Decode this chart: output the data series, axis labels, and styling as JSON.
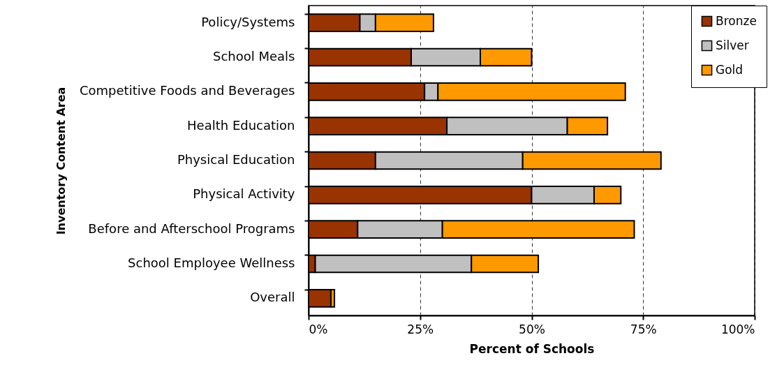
{
  "chart_data": {
    "type": "bar",
    "orientation": "horizontal",
    "stacked": true,
    "xlabel": "Percent of Schools",
    "ylabel": "Inventory Content Area",
    "categories": [
      "Policy/Systems",
      "School Meals",
      "Competitive Foods and Beverages",
      "Health Education",
      "Physical Education",
      "Physical Activity",
      "Before and Afterschool Programs",
      "School Employee Wellness",
      "Overall"
    ],
    "series": [
      {
        "name": "Bronze",
        "color": "#993300",
        "values": [
          11.5,
          23,
          26,
          31,
          15,
          50,
          11,
          1.5,
          5
        ]
      },
      {
        "name": "Silver",
        "color": "#c0c0c0",
        "values": [
          3.5,
          15.5,
          3,
          27,
          33,
          14,
          19,
          35,
          null
        ]
      },
      {
        "name": "Gold",
        "color": "#ff9900",
        "values": [
          13,
          11.5,
          42,
          9,
          31,
          6,
          43,
          15,
          0.8
        ]
      }
    ],
    "xlim": [
      0,
      100
    ],
    "xticks": [
      {
        "value": 0,
        "label": "0%"
      },
      {
        "value": 25,
        "label": "25%"
      },
      {
        "value": 50,
        "label": "50%"
      },
      {
        "value": 75,
        "label": "75%"
      },
      {
        "value": 100,
        "label": "100%"
      }
    ],
    "grid": "x",
    "legend": "top right"
  }
}
